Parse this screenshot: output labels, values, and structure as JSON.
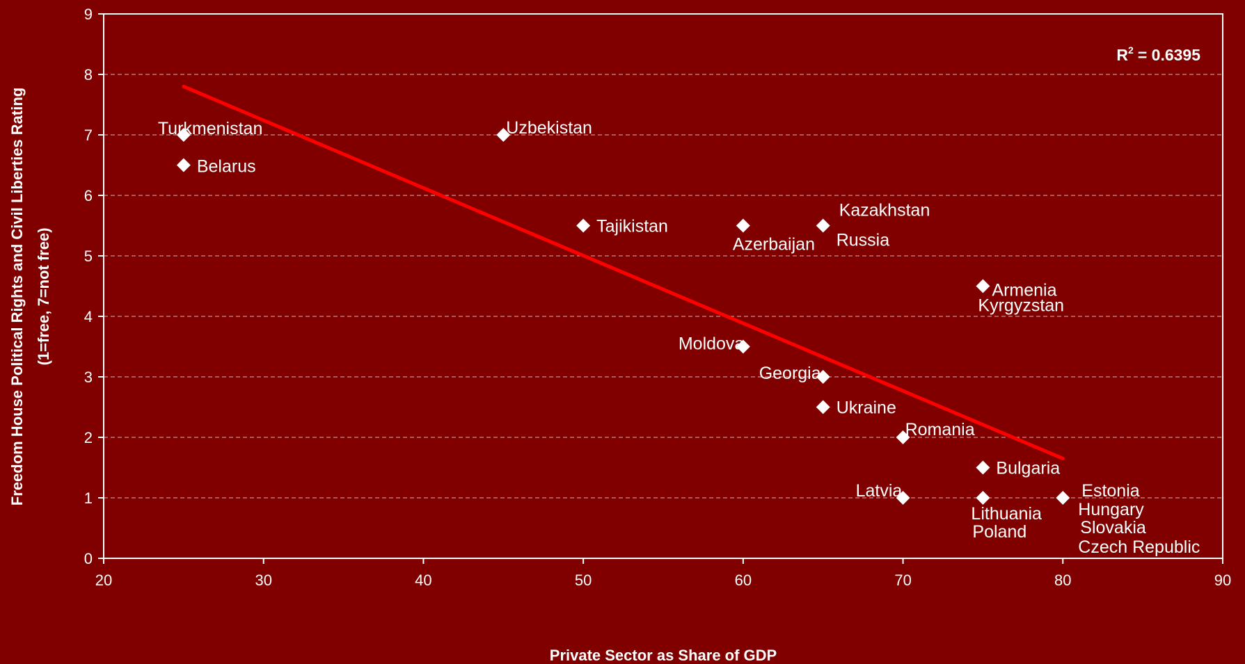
{
  "chart_data": {
    "type": "scatter",
    "xlabel": "Private Sector as Share of GDP",
    "ylabel_line1": "Freedom House Political Rights and Civil Liberties Rating",
    "ylabel_line2": "(1=free, 7=not free)",
    "xlim": [
      20,
      90
    ],
    "ylim": [
      0,
      9
    ],
    "x_ticks": [
      20,
      30,
      40,
      50,
      60,
      70,
      80,
      90
    ],
    "y_ticks": [
      0,
      1,
      2,
      3,
      4,
      5,
      6,
      7,
      8,
      9
    ],
    "grid": "horizontal dashed",
    "annotation": {
      "r_label": "R",
      "r_sup": "2",
      "r_value": "= 0.6395"
    },
    "points": [
      {
        "label": "Turkmenistan",
        "x": 25,
        "y": 7
      },
      {
        "label": "Belarus",
        "x": 25,
        "y": 6.5
      },
      {
        "label": "Uzbekistan",
        "x": 45,
        "y": 7
      },
      {
        "label": "Tajikistan",
        "x": 50,
        "y": 5.5
      },
      {
        "label": "Azerbaijan",
        "x": 60,
        "y": 5.5
      },
      {
        "label": "Kazakhstan",
        "x": 65,
        "y": 5.5
      },
      {
        "label": "Russia",
        "x": 65,
        "y": 5.5
      },
      {
        "label": "Armenia",
        "x": 75,
        "y": 4.5
      },
      {
        "label": "Kyrgyzstan",
        "x": 75,
        "y": 4.5
      },
      {
        "label": "Moldova",
        "x": 60,
        "y": 3.5
      },
      {
        "label": "Georgia",
        "x": 65,
        "y": 3
      },
      {
        "label": "Ukraine",
        "x": 65,
        "y": 2.5
      },
      {
        "label": "Romania",
        "x": 70,
        "y": 2
      },
      {
        "label": "Bulgaria",
        "x": 75,
        "y": 1.5
      },
      {
        "label": "Latvia",
        "x": 70,
        "y": 1
      },
      {
        "label": "Lithuania",
        "x": 75,
        "y": 1
      },
      {
        "label": "Poland",
        "x": 75,
        "y": 1
      },
      {
        "label": "Estonia",
        "x": 80,
        "y": 1
      },
      {
        "label": "Hungary",
        "x": 80,
        "y": 1
      },
      {
        "label": "Slovakia",
        "x": 80,
        "y": 1
      },
      {
        "label": "Czech Republic",
        "x": 80,
        "y": 1
      }
    ],
    "trendline": {
      "x": [
        25,
        80
      ],
      "y": [
        7.8,
        1.65
      ]
    },
    "colors": {
      "background": "#800000",
      "marker": "#ffffff",
      "trendline": "#ff0000",
      "grid": "#d9b3b3"
    }
  }
}
